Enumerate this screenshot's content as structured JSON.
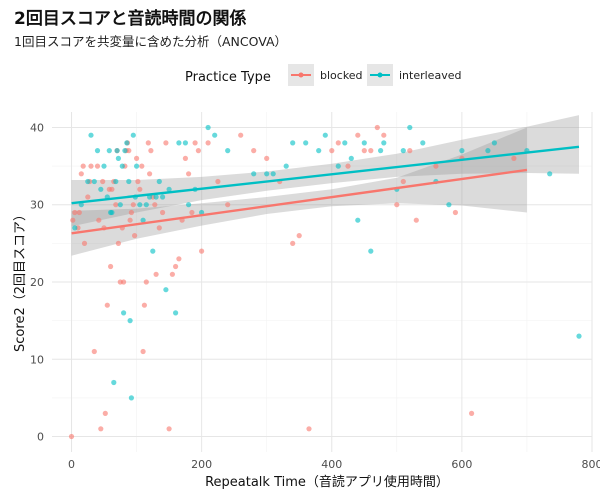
{
  "title": "2回目スコアと音読時間の関係",
  "subtitle": "1回目スコアを共変量に含めた分析（ANCOVA）",
  "chart_data": {
    "type": "scatter",
    "xlabel": "Repeatalk Time（音読アプリ使用時間）",
    "ylabel": "Score2（2回目スコア）",
    "xlim": [
      -30,
      800
    ],
    "ylim": [
      -2,
      42
    ],
    "x_ticks": [
      "0",
      "200",
      "400",
      "600",
      "800"
    ],
    "y_ticks": [
      "0",
      "10",
      "20",
      "30",
      "40"
    ],
    "grid": true,
    "legend": {
      "title": "Practice Type",
      "position": "top",
      "items": [
        "blocked",
        "interleaved"
      ]
    },
    "series": [
      {
        "name": "blocked",
        "color": "#F8766D",
        "fit_line": {
          "x": [
            0,
            700
          ],
          "y": [
            26.3,
            34.5
          ]
        },
        "confidence_band": {
          "x": [
            0,
            100,
            200,
            300,
            400,
            500,
            600,
            700
          ],
          "lower": [
            23.4,
            25.6,
            27.3,
            28.8,
            29.8,
            30.2,
            29.9,
            29.0
          ],
          "upper": [
            29.2,
            29.5,
            30.2,
            31.0,
            32.0,
            33.5,
            36.5,
            40.0
          ]
        },
        "points": [
          [
            0,
            0
          ],
          [
            2,
            28
          ],
          [
            5,
            29
          ],
          [
            10,
            27
          ],
          [
            12,
            29
          ],
          [
            15,
            34
          ],
          [
            18,
            35
          ],
          [
            20,
            25
          ],
          [
            25,
            31
          ],
          [
            28,
            33
          ],
          [
            30,
            35
          ],
          [
            35,
            11
          ],
          [
            40,
            35
          ],
          [
            42,
            28
          ],
          [
            45,
            1
          ],
          [
            48,
            33
          ],
          [
            50,
            27
          ],
          [
            52,
            3
          ],
          [
            55,
            17
          ],
          [
            58,
            32
          ],
          [
            60,
            22
          ],
          [
            62,
            32
          ],
          [
            65,
            33
          ],
          [
            68,
            30
          ],
          [
            70,
            37
          ],
          [
            72,
            25
          ],
          [
            75,
            20
          ],
          [
            78,
            27
          ],
          [
            80,
            20
          ],
          [
            82,
            35
          ],
          [
            84,
            37
          ],
          [
            86,
            38
          ],
          [
            88,
            37
          ],
          [
            90,
            28
          ],
          [
            92,
            29
          ],
          [
            95,
            30
          ],
          [
            97,
            26
          ],
          [
            100,
            36
          ],
          [
            102,
            33
          ],
          [
            105,
            32
          ],
          [
            108,
            35
          ],
          [
            110,
            11
          ],
          [
            112,
            17
          ],
          [
            115,
            20
          ],
          [
            118,
            38
          ],
          [
            120,
            34
          ],
          [
            122,
            37
          ],
          [
            125,
            31
          ],
          [
            128,
            30
          ],
          [
            130,
            21
          ],
          [
            135,
            27
          ],
          [
            140,
            29
          ],
          [
            145,
            38
          ],
          [
            150,
            1
          ],
          [
            155,
            21
          ],
          [
            160,
            22
          ],
          [
            165,
            23
          ],
          [
            170,
            28
          ],
          [
            175,
            36
          ],
          [
            180,
            34
          ],
          [
            185,
            29
          ],
          [
            190,
            38
          ],
          [
            195,
            37
          ],
          [
            200,
            24
          ],
          [
            210,
            38
          ],
          [
            225,
            33
          ],
          [
            240,
            30
          ],
          [
            260,
            39
          ],
          [
            280,
            37
          ],
          [
            300,
            36
          ],
          [
            320,
            33
          ],
          [
            340,
            25
          ],
          [
            350,
            26
          ],
          [
            365,
            1
          ],
          [
            400,
            37
          ],
          [
            410,
            38
          ],
          [
            425,
            35
          ],
          [
            440,
            39
          ],
          [
            450,
            37
          ],
          [
            460,
            37
          ],
          [
            470,
            40
          ],
          [
            480,
            39
          ],
          [
            500,
            30
          ],
          [
            510,
            33
          ],
          [
            520,
            37
          ],
          [
            530,
            28
          ],
          [
            560,
            35
          ],
          [
            590,
            29
          ],
          [
            600,
            36
          ],
          [
            615,
            3
          ],
          [
            680,
            36
          ]
        ]
      },
      {
        "name": "interleaved",
        "color": "#00BFC4",
        "fit_line": {
          "x": [
            0,
            780
          ],
          "y": [
            30.2,
            37.5
          ]
        },
        "confidence_band": {
          "x": [
            0,
            100,
            200,
            300,
            400,
            500,
            600,
            700,
            780
          ],
          "lower": [
            27.2,
            29.0,
            30.6,
            31.8,
            32.8,
            33.6,
            34.0,
            34.1,
            34.0
          ],
          "upper": [
            33.2,
            33.2,
            33.6,
            34.3,
            35.3,
            36.6,
            38.4,
            40.1,
            41.6
          ]
        },
        "points": [
          [
            5,
            27
          ],
          [
            15,
            30
          ],
          [
            25,
            33
          ],
          [
            30,
            39
          ],
          [
            35,
            33
          ],
          [
            40,
            37
          ],
          [
            45,
            32
          ],
          [
            50,
            35
          ],
          [
            55,
            31
          ],
          [
            58,
            37
          ],
          [
            60,
            29
          ],
          [
            62,
            29
          ],
          [
            65,
            7
          ],
          [
            68,
            33
          ],
          [
            70,
            37
          ],
          [
            72,
            36
          ],
          [
            75,
            30
          ],
          [
            78,
            35
          ],
          [
            80,
            16
          ],
          [
            82,
            37
          ],
          [
            85,
            38
          ],
          [
            88,
            33
          ],
          [
            90,
            15
          ],
          [
            92,
            5
          ],
          [
            95,
            39
          ],
          [
            98,
            31
          ],
          [
            100,
            35
          ],
          [
            105,
            30
          ],
          [
            110,
            28
          ],
          [
            115,
            30
          ],
          [
            120,
            31
          ],
          [
            125,
            24
          ],
          [
            130,
            31
          ],
          [
            135,
            33
          ],
          [
            140,
            31
          ],
          [
            145,
            19
          ],
          [
            150,
            32
          ],
          [
            160,
            16
          ],
          [
            165,
            38
          ],
          [
            175,
            38
          ],
          [
            180,
            30
          ],
          [
            190,
            32
          ],
          [
            200,
            29
          ],
          [
            210,
            40
          ],
          [
            220,
            39
          ],
          [
            240,
            37
          ],
          [
            280,
            34
          ],
          [
            300,
            34
          ],
          [
            310,
            34
          ],
          [
            330,
            35
          ],
          [
            340,
            38
          ],
          [
            360,
            38
          ],
          [
            380,
            37
          ],
          [
            390,
            39
          ],
          [
            410,
            35
          ],
          [
            420,
            38
          ],
          [
            430,
            36
          ],
          [
            440,
            28
          ],
          [
            450,
            38
          ],
          [
            460,
            24
          ],
          [
            475,
            37
          ],
          [
            480,
            38
          ],
          [
            500,
            32
          ],
          [
            510,
            37
          ],
          [
            520,
            40
          ],
          [
            540,
            38
          ],
          [
            560,
            33
          ],
          [
            580,
            30
          ],
          [
            600,
            37
          ],
          [
            640,
            37
          ],
          [
            650,
            38
          ],
          [
            700,
            37
          ],
          [
            735,
            34
          ],
          [
            780,
            13
          ]
        ]
      }
    ]
  }
}
